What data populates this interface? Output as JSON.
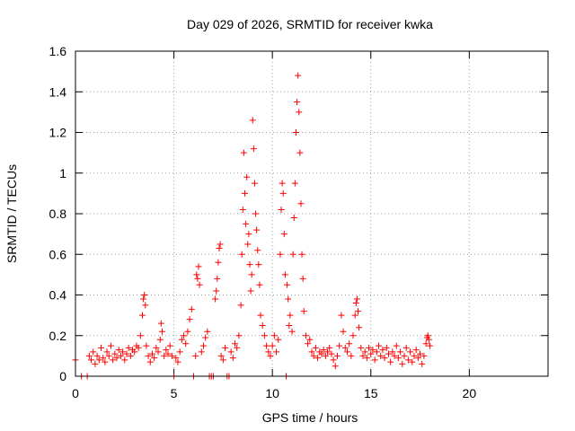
{
  "chart_data": {
    "type": "scatter",
    "title": "Day 029 of 2026, SRMTID for receiver kwka",
    "xlabel": "GPS time / hours",
    "ylabel": "SRMTID / TECUs",
    "xlim": [
      0,
      24
    ],
    "ylim": [
      0,
      1.6
    ],
    "xticks": [
      0,
      5,
      10,
      15,
      20
    ],
    "xtick_labels": [
      "0",
      "5",
      "10",
      "15",
      "20"
    ],
    "yticks": [
      0,
      0.2,
      0.4,
      0.6,
      0.8,
      1.0,
      1.2,
      1.4,
      1.6
    ],
    "ytick_labels": [
      "0",
      "0.2",
      "0.4",
      "0.6",
      "0.8",
      "1",
      "1.2",
      "1.4",
      "1.6"
    ],
    "grid": true,
    "marker": "+",
    "marker_color": "#ff0000",
    "series": [
      {
        "name": "SRMTID",
        "points": [
          [
            0.0,
            0.08
          ],
          [
            0.3,
            0.0
          ],
          [
            0.6,
            0.0
          ],
          [
            0.7,
            0.1
          ],
          [
            0.8,
            0.08
          ],
          [
            0.9,
            0.12
          ],
          [
            1.0,
            0.06
          ],
          [
            1.1,
            0.1
          ],
          [
            1.2,
            0.08
          ],
          [
            1.3,
            0.14
          ],
          [
            1.4,
            0.09
          ],
          [
            1.5,
            0.07
          ],
          [
            1.6,
            0.12
          ],
          [
            1.7,
            0.1
          ],
          [
            1.8,
            0.15
          ],
          [
            1.9,
            0.08
          ],
          [
            2.0,
            0.11
          ],
          [
            2.1,
            0.09
          ],
          [
            2.2,
            0.13
          ],
          [
            2.3,
            0.1
          ],
          [
            2.4,
            0.12
          ],
          [
            2.5,
            0.08
          ],
          [
            2.6,
            0.11
          ],
          [
            2.7,
            0.14
          ],
          [
            2.8,
            0.1
          ],
          [
            2.9,
            0.13
          ],
          [
            3.0,
            0.12
          ],
          [
            3.1,
            0.15
          ],
          [
            3.2,
            0.14
          ],
          [
            3.3,
            0.2
          ],
          [
            3.4,
            0.3
          ],
          [
            3.45,
            0.38
          ],
          [
            3.5,
            0.4
          ],
          [
            3.55,
            0.35
          ],
          [
            3.6,
            0.15
          ],
          [
            3.7,
            0.1
          ],
          [
            3.8,
            0.07
          ],
          [
            3.9,
            0.11
          ],
          [
            4.0,
            0.09
          ],
          [
            4.1,
            0.14
          ],
          [
            4.2,
            0.12
          ],
          [
            4.3,
            0.18
          ],
          [
            4.35,
            0.26
          ],
          [
            4.4,
            0.22
          ],
          [
            4.5,
            0.1
          ],
          [
            4.6,
            0.13
          ],
          [
            4.7,
            0.11
          ],
          [
            4.8,
            0.15
          ],
          [
            4.9,
            0.1
          ],
          [
            5.0,
            0.0
          ],
          [
            5.1,
            0.09
          ],
          [
            5.2,
            0.07
          ],
          [
            5.3,
            0.12
          ],
          [
            5.4,
            0.18
          ],
          [
            5.5,
            0.2
          ],
          [
            5.6,
            0.16
          ],
          [
            5.7,
            0.22
          ],
          [
            5.8,
            0.28
          ],
          [
            5.9,
            0.33
          ],
          [
            6.0,
            0.0
          ],
          [
            6.1,
            0.1
          ],
          [
            6.15,
            0.5
          ],
          [
            6.2,
            0.48
          ],
          [
            6.25,
            0.54
          ],
          [
            6.3,
            0.45
          ],
          [
            6.4,
            0.12
          ],
          [
            6.5,
            0.15
          ],
          [
            6.6,
            0.19
          ],
          [
            6.7,
            0.22
          ],
          [
            6.8,
            0.0
          ],
          [
            6.9,
            0.0
          ],
          [
            7.0,
            0.0
          ],
          [
            7.1,
            0.38
          ],
          [
            7.15,
            0.42
          ],
          [
            7.2,
            0.48
          ],
          [
            7.25,
            0.56
          ],
          [
            7.3,
            0.63
          ],
          [
            7.35,
            0.65
          ],
          [
            7.4,
            0.1
          ],
          [
            7.5,
            0.08
          ],
          [
            7.6,
            0.14
          ],
          [
            7.7,
            0.0
          ],
          [
            7.8,
            0.0
          ],
          [
            7.9,
            0.12
          ],
          [
            8.0,
            0.09
          ],
          [
            8.1,
            0.16
          ],
          [
            8.2,
            0.14
          ],
          [
            8.3,
            0.2
          ],
          [
            8.4,
            0.35
          ],
          [
            8.45,
            0.6
          ],
          [
            8.5,
            0.82
          ],
          [
            8.55,
            1.1
          ],
          [
            8.6,
            0.9
          ],
          [
            8.65,
            0.75
          ],
          [
            8.7,
            0.98
          ],
          [
            8.75,
            0.65
          ],
          [
            8.8,
            0.7
          ],
          [
            8.85,
            0.55
          ],
          [
            8.9,
            0.42
          ],
          [
            8.95,
            0.5
          ],
          [
            9.0,
            1.26
          ],
          [
            9.05,
            1.12
          ],
          [
            9.1,
            0.95
          ],
          [
            9.15,
            0.8
          ],
          [
            9.2,
            0.72
          ],
          [
            9.25,
            0.62
          ],
          [
            9.3,
            0.55
          ],
          [
            9.35,
            0.45
          ],
          [
            9.4,
            0.3
          ],
          [
            9.5,
            0.25
          ],
          [
            9.6,
            0.2
          ],
          [
            9.7,
            0.15
          ],
          [
            9.8,
            0.12
          ],
          [
            9.9,
            0.1
          ],
          [
            10.0,
            0.15
          ],
          [
            10.1,
            0.2
          ],
          [
            10.2,
            0.12
          ],
          [
            10.3,
            0.18
          ],
          [
            10.4,
            0.6
          ],
          [
            10.45,
            0.82
          ],
          [
            10.5,
            0.95
          ],
          [
            10.55,
            0.9
          ],
          [
            10.6,
            0.7
          ],
          [
            10.65,
            0.5
          ],
          [
            10.7,
            0.0
          ],
          [
            10.75,
            0.45
          ],
          [
            10.8,
            0.38
          ],
          [
            10.85,
            0.25
          ],
          [
            10.9,
            0.3
          ],
          [
            11.0,
            0.22
          ],
          [
            11.05,
            0.6
          ],
          [
            11.1,
            0.78
          ],
          [
            11.15,
            0.95
          ],
          [
            11.2,
            1.2
          ],
          [
            11.25,
            1.35
          ],
          [
            11.3,
            1.48
          ],
          [
            11.35,
            1.3
          ],
          [
            11.4,
            1.1
          ],
          [
            11.45,
            0.85
          ],
          [
            11.5,
            0.6
          ],
          [
            11.55,
            0.48
          ],
          [
            11.6,
            0.32
          ],
          [
            11.7,
            0.2
          ],
          [
            11.8,
            0.16
          ],
          [
            11.9,
            0.18
          ],
          [
            12.0,
            0.12
          ],
          [
            12.1,
            0.1
          ],
          [
            12.2,
            0.14
          ],
          [
            12.3,
            0.09
          ],
          [
            12.4,
            0.12
          ],
          [
            12.5,
            0.11
          ],
          [
            12.6,
            0.13
          ],
          [
            12.7,
            0.1
          ],
          [
            12.8,
            0.12
          ],
          [
            12.9,
            0.14
          ],
          [
            13.0,
            0.11
          ],
          [
            13.1,
            0.08
          ],
          [
            13.2,
            0.05
          ],
          [
            13.3,
            0.1
          ],
          [
            13.4,
            0.15
          ],
          [
            13.5,
            0.3
          ],
          [
            13.6,
            0.22
          ],
          [
            13.7,
            0.14
          ],
          [
            13.8,
            0.12
          ],
          [
            13.9,
            0.16
          ],
          [
            14.0,
            0.1
          ],
          [
            14.1,
            0.2
          ],
          [
            14.2,
            0.3
          ],
          [
            14.25,
            0.36
          ],
          [
            14.3,
            0.38
          ],
          [
            14.35,
            0.32
          ],
          [
            14.4,
            0.24
          ],
          [
            14.5,
            0.14
          ],
          [
            14.6,
            0.1
          ],
          [
            14.7,
            0.12
          ],
          [
            14.8,
            0.09
          ],
          [
            14.9,
            0.14
          ],
          [
            15.0,
            0.11
          ],
          [
            15.1,
            0.13
          ],
          [
            15.2,
            0.08
          ],
          [
            15.3,
            0.12
          ],
          [
            15.4,
            0.15
          ],
          [
            15.5,
            0.1
          ],
          [
            15.6,
            0.13
          ],
          [
            15.7,
            0.09
          ],
          [
            15.8,
            0.14
          ],
          [
            15.9,
            0.11
          ],
          [
            16.0,
            0.07
          ],
          [
            16.1,
            0.12
          ],
          [
            16.2,
            0.1
          ],
          [
            16.3,
            0.15
          ],
          [
            16.4,
            0.09
          ],
          [
            16.5,
            0.12
          ],
          [
            16.6,
            0.06
          ],
          [
            16.7,
            0.1
          ],
          [
            16.8,
            0.14
          ],
          [
            16.9,
            0.08
          ],
          [
            17.0,
            0.12
          ],
          [
            17.1,
            0.07
          ],
          [
            17.2,
            0.1
          ],
          [
            17.3,
            0.13
          ],
          [
            17.4,
            0.09
          ],
          [
            17.5,
            0.11
          ],
          [
            17.6,
            0.06
          ],
          [
            17.7,
            0.1
          ],
          [
            17.8,
            0.16
          ],
          [
            17.85,
            0.19
          ],
          [
            17.9,
            0.2
          ],
          [
            17.95,
            0.18
          ],
          [
            18.0,
            0.15
          ]
        ]
      }
    ]
  }
}
